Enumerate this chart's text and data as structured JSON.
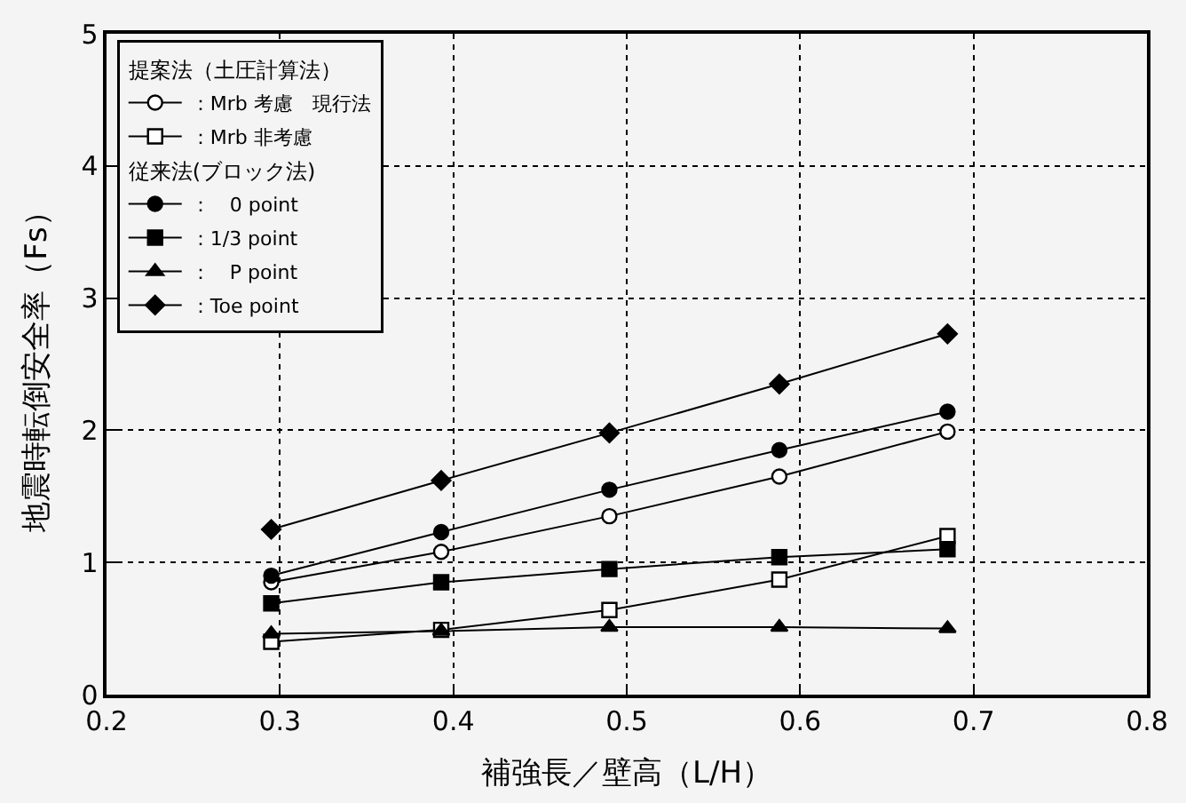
{
  "chart_data": {
    "type": "line",
    "xlabel": "補強長／壁高（L/H）",
    "ylabel": "地震時転倒安全率（Fs）",
    "x": [
      0.295,
      0.393,
      0.49,
      0.588,
      0.685
    ],
    "xlim": [
      0.2,
      0.8
    ],
    "xticks": [
      0.2,
      0.3,
      0.4,
      0.5,
      0.6,
      0.7,
      0.8
    ],
    "ylim": [
      0,
      5
    ],
    "yticks": [
      0,
      1,
      2,
      3,
      4,
      5
    ],
    "grid": true,
    "legend": "top left",
    "line_style": "solid",
    "annotations": [
      "提案法（土圧計算法）",
      "従来法(ブロック法)"
    ],
    "series": [
      {
        "name": "：Mrb 考慮　現行法",
        "color": "#000000",
        "marker": "circle",
        "colors": [
          "#ffffff",
          "#ffffff",
          "#ffffff",
          "#ffffff",
          "#ffffff"
        ],
        "values": [
          0.85,
          1.08,
          1.35,
          1.65,
          1.99
        ]
      },
      {
        "name": "：Mrb 非考慮",
        "color": "#000000",
        "marker": "square",
        "colors": [
          "#ffffff",
          "#ffffff",
          "#ffffff",
          "#ffffff",
          "#ffffff"
        ],
        "values": [
          0.4,
          0.49,
          0.64,
          0.87,
          1.2
        ]
      },
      {
        "name": "：　0 point",
        "color": "#000000",
        "marker": "circle",
        "values": [
          0.9,
          1.23,
          1.55,
          1.85,
          2.14
        ]
      },
      {
        "name": "：1/3 point",
        "color": "#000000",
        "marker": "square",
        "values": [
          0.69,
          0.85,
          0.95,
          1.04,
          1.1
        ]
      },
      {
        "name": "：　P point",
        "color": "#000000",
        "marker": "triangle",
        "values": [
          0.46,
          0.48,
          0.51,
          0.51,
          0.5
        ]
      },
      {
        "name": "：Toe point",
        "color": "#000000",
        "marker": "diamond",
        "values": [
          1.25,
          1.62,
          1.98,
          2.35,
          2.73
        ]
      }
    ]
  }
}
